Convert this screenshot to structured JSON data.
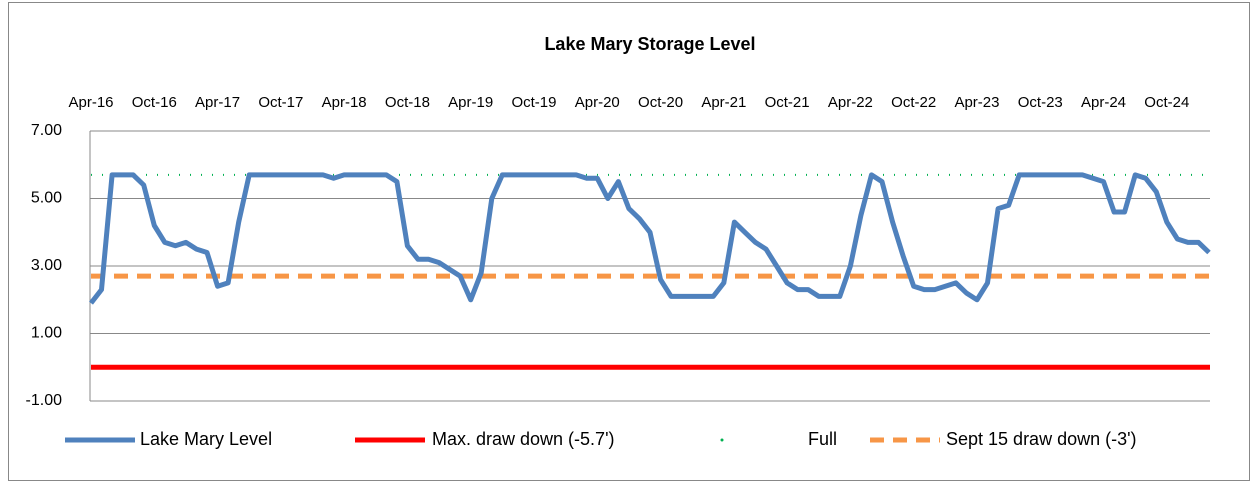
{
  "chart_data": {
    "type": "line",
    "title": "Lake Mary Storage Level",
    "x": [
      "Apr-16",
      "May-16",
      "Jun-16",
      "Jul-16",
      "Aug-16",
      "Sep-16",
      "Oct-16",
      "Nov-16",
      "Dec-16",
      "Jan-17",
      "Feb-17",
      "Mar-17",
      "Apr-17",
      "May-17",
      "Jun-17",
      "Jul-17",
      "Aug-17",
      "Sep-17",
      "Oct-17",
      "Nov-17",
      "Dec-17",
      "Jan-18",
      "Feb-18",
      "Mar-18",
      "Apr-18",
      "May-18",
      "Jun-18",
      "Jul-18",
      "Aug-18",
      "Sep-18",
      "Oct-18",
      "Nov-18",
      "Dec-18",
      "Jan-19",
      "Feb-19",
      "Mar-19",
      "Apr-19",
      "May-19",
      "Jun-19",
      "Jul-19",
      "Aug-19",
      "Sep-19",
      "Oct-19",
      "Nov-19",
      "Dec-19",
      "Jan-20",
      "Feb-20",
      "Mar-20",
      "Apr-20",
      "May-20",
      "Jun-20",
      "Jul-20",
      "Aug-20",
      "Sep-20",
      "Oct-20",
      "Nov-20",
      "Dec-20",
      "Jan-21",
      "Feb-21",
      "Mar-21",
      "Apr-21",
      "May-21",
      "Jun-21",
      "Jul-21",
      "Aug-21",
      "Sep-21",
      "Oct-21",
      "Nov-21",
      "Dec-21",
      "Jan-22",
      "Feb-22",
      "Mar-22",
      "Apr-22",
      "May-22",
      "Jun-22",
      "Jul-22",
      "Aug-22",
      "Sep-22",
      "Oct-22",
      "Nov-22",
      "Dec-22",
      "Jan-23",
      "Feb-23",
      "Mar-23",
      "Apr-23",
      "May-23",
      "Jun-23",
      "Jul-23",
      "Aug-23",
      "Sep-23",
      "Oct-23",
      "Nov-23",
      "Dec-23",
      "Jan-24",
      "Feb-24",
      "Mar-24",
      "Apr-24",
      "May-24",
      "Jun-24",
      "Jul-24",
      "Aug-24",
      "Sep-24",
      "Oct-24",
      "Nov-24",
      "Dec-24",
      "Jan-25",
      "Feb-25"
    ],
    "xticks": [
      "Apr-16",
      "Oct-16",
      "Apr-17",
      "Oct-17",
      "Apr-18",
      "Oct-18",
      "Apr-19",
      "Oct-19",
      "Apr-20",
      "Oct-20",
      "Apr-21",
      "Oct-21",
      "Apr-22",
      "Oct-22",
      "Apr-23",
      "Oct-23",
      "Apr-24",
      "Oct-24"
    ],
    "series": [
      {
        "name": "Lake Mary  Level",
        "color": "#4f81bd",
        "values": [
          1.9,
          2.3,
          5.7,
          5.7,
          5.7,
          5.4,
          4.2,
          3.7,
          3.6,
          3.7,
          3.5,
          3.4,
          2.4,
          2.5,
          4.3,
          5.7,
          5.7,
          5.7,
          5.7,
          5.7,
          5.7,
          5.7,
          5.7,
          5.6,
          5.7,
          5.7,
          5.7,
          5.7,
          5.7,
          5.5,
          3.6,
          3.2,
          3.2,
          3.1,
          2.9,
          2.7,
          2.0,
          2.8,
          5.0,
          5.7,
          5.7,
          5.7,
          5.7,
          5.7,
          5.7,
          5.7,
          5.7,
          5.6,
          5.6,
          5.0,
          5.5,
          4.7,
          4.4,
          4.0,
          2.6,
          2.1,
          2.1,
          2.1,
          2.1,
          2.1,
          2.5,
          4.3,
          4.0,
          3.7,
          3.5,
          3.0,
          2.5,
          2.3,
          2.3,
          2.1,
          2.1,
          2.1,
          3.0,
          4.5,
          5.7,
          5.5,
          4.3,
          3.3,
          2.4,
          2.3,
          2.3,
          2.4,
          2.5,
          2.2,
          2.0,
          2.5,
          4.7,
          4.8,
          5.7,
          5.7,
          5.7,
          5.7,
          5.7,
          5.7,
          5.7,
          5.6,
          5.5,
          4.6,
          4.6,
          5.7,
          5.6,
          5.2,
          4.3,
          3.8,
          3.7,
          3.7,
          3.4
        ]
      }
    ],
    "reference_lines": [
      {
        "name": "Max. draw down (-5.7')",
        "color": "#ff0000",
        "value": 0,
        "style": "solid"
      },
      {
        "name": "Full",
        "color": "#00b050",
        "value": 5.7,
        "style": "dot"
      },
      {
        "name": "Sept 15 draw down (-3')",
        "color": "#f79646",
        "value": 2.7,
        "style": "dash"
      }
    ],
    "ylim": [
      -1,
      7
    ],
    "yticks": [
      {
        "value": -1,
        "label": "-1.00"
      },
      {
        "value": 1,
        "label": "1.00"
      },
      {
        "value": 3,
        "label": "3.00"
      },
      {
        "value": 5,
        "label": "5.00"
      },
      {
        "value": 7,
        "label": "7.00"
      }
    ],
    "grid": true
  }
}
